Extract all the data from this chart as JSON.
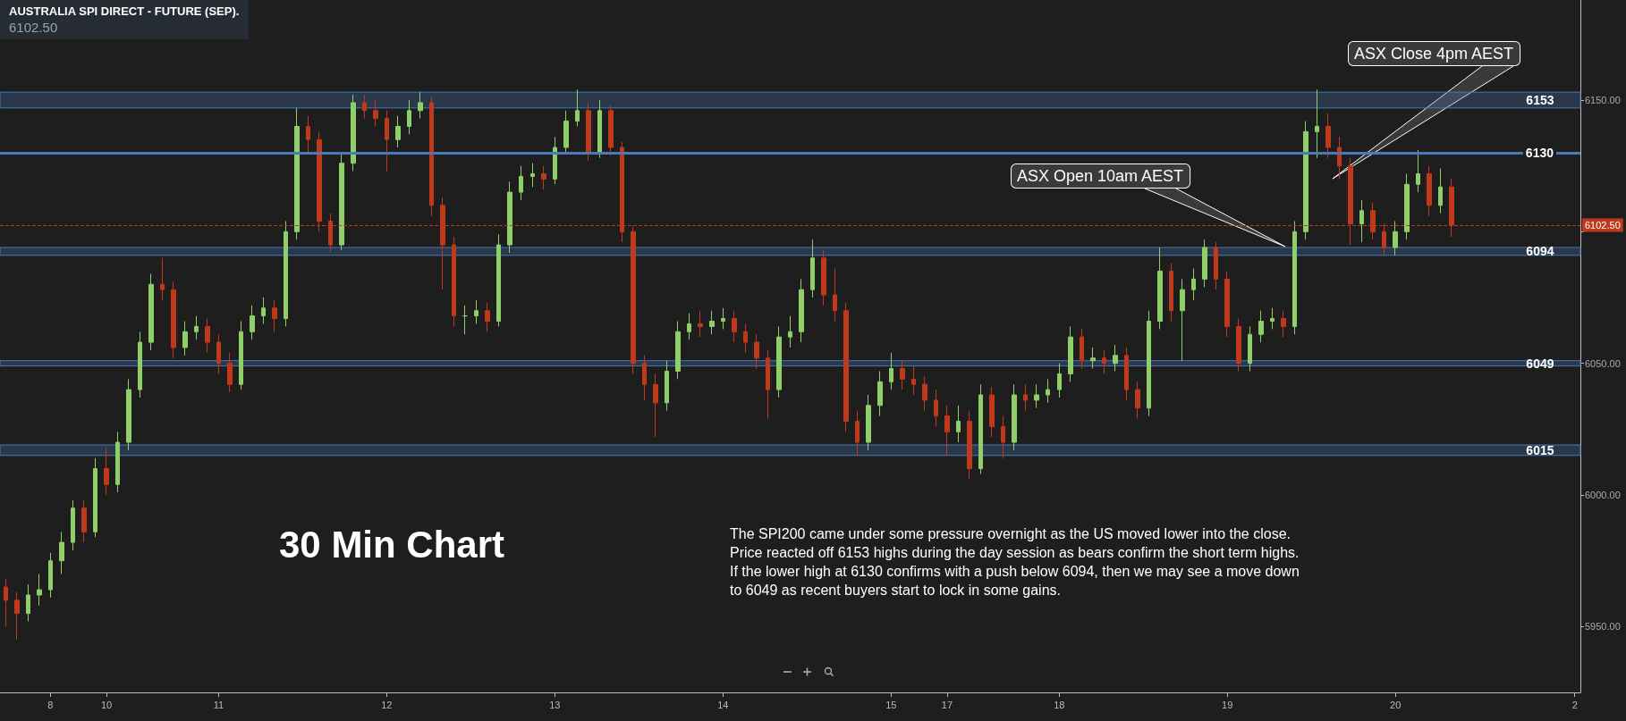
{
  "chart_data": {
    "type": "candlestick",
    "title": "AUSTRALIA SPI DIRECT - FUTURE (SEP).",
    "subtitle": "6102.50",
    "annotations": [
      "30 Min Chart",
      "The SPI200 came under some pressure overnight as the US moved lower into the close.\nPrice reacted off 6153 highs during the day session as bears confirm the short term highs.\nIf the lower high at 6130 confirms with a push below 6094, then we may see a move down\nto 6049 as recent buyers start to lock in some gains.",
      "ASX Open 10am AEST",
      "ASX Close 4pm AEST"
    ],
    "categories": [
      null,
      null,
      null,
      null,
      "8",
      null,
      null,
      null,
      null,
      "10",
      null,
      null,
      null,
      null,
      null,
      null,
      null,
      null,
      null,
      "11",
      null,
      null,
      null,
      null,
      null,
      null,
      null,
      null,
      null,
      null,
      null,
      null,
      null,
      null,
      "12",
      null,
      null,
      null,
      null,
      null,
      null,
      null,
      null,
      null,
      null,
      null,
      null,
      null,
      null,
      "13",
      null,
      null,
      null,
      null,
      null,
      null,
      null,
      null,
      null,
      null,
      null,
      null,
      null,
      null,
      "14",
      null,
      null,
      null,
      null,
      null,
      null,
      null,
      null,
      null,
      null,
      null,
      null,
      null,
      null,
      "15",
      null,
      null,
      null,
      null,
      "17",
      null,
      null,
      null,
      null,
      null,
      null,
      null,
      null,
      null,
      "18",
      null,
      null,
      null,
      null,
      null,
      null,
      null,
      null,
      null,
      null,
      null,
      null,
      null,
      null,
      "19",
      null,
      null,
      null,
      null,
      null,
      null,
      null,
      null,
      null,
      null,
      null,
      null,
      null,
      null,
      "20",
      null,
      null,
      null,
      null,
      null,
      null,
      null,
      null,
      null,
      null,
      null,
      null,
      null,
      null,
      null,
      "2"
    ],
    "ohlc": [
      [
        5965,
        5968,
        5950,
        5960
      ],
      [
        5960,
        5963,
        5945,
        5955
      ],
      [
        5955,
        5966,
        5952,
        5962
      ],
      [
        5962,
        5970,
        5958,
        5964
      ],
      [
        5964,
        5978,
        5961,
        5975
      ],
      [
        5975,
        5986,
        5970,
        5982
      ],
      [
        5982,
        5998,
        5979,
        5995
      ],
      [
        5995,
        5998,
        5982,
        5986
      ],
      [
        5986,
        6014,
        5984,
        6010
      ],
      [
        6010,
        6018,
        6000,
        6004
      ],
      [
        6004,
        6024,
        6001,
        6020
      ],
      [
        6020,
        6044,
        6017,
        6040
      ],
      [
        6040,
        6062,
        6037,
        6058
      ],
      [
        6058,
        6084,
        6055,
        6080
      ],
      [
        6080,
        6090,
        6074,
        6078
      ],
      [
        6078,
        6081,
        6052,
        6056
      ],
      [
        6056,
        6066,
        6053,
        6062
      ],
      [
        6062,
        6068,
        6059,
        6064
      ],
      [
        6064,
        6067,
        6054,
        6058
      ],
      [
        6058,
        6061,
        6046,
        6050
      ],
      [
        6050,
        6054,
        6039,
        6042
      ],
      [
        6042,
        6066,
        6040,
        6062
      ],
      [
        6062,
        6072,
        6059,
        6068
      ],
      [
        6068,
        6075,
        6065,
        6071
      ],
      [
        6071,
        6074,
        6062,
        6067
      ],
      [
        6067,
        6104,
        6064,
        6100
      ],
      [
        6100,
        6147,
        6097,
        6140
      ],
      [
        6140,
        6144,
        6130,
        6135
      ],
      [
        6135,
        6138,
        6100,
        6104
      ],
      [
        6104,
        6107,
        6092,
        6095
      ],
      [
        6095,
        6130,
        6093,
        6126
      ],
      [
        6126,
        6152,
        6123,
        6149
      ],
      [
        6149,
        6152,
        6143,
        6146
      ],
      [
        6146,
        6150,
        6140,
        6143
      ],
      [
        6143,
        6146,
        6123,
        6135
      ],
      [
        6135,
        6144,
        6132,
        6140
      ],
      [
        6140,
        6150,
        6137,
        6146
      ],
      [
        6146,
        6153,
        6143,
        6149
      ],
      [
        6149,
        6151,
        6106,
        6110
      ],
      [
        6110,
        6113,
        6078,
        6095
      ],
      [
        6095,
        6098,
        6064,
        6068
      ],
      [
        6068,
        6072,
        6061,
        6068
      ],
      [
        6068,
        6074,
        6065,
        6070
      ],
      [
        6070,
        6073,
        6062,
        6066
      ],
      [
        6066,
        6099,
        6064,
        6095
      ],
      [
        6095,
        6119,
        6092,
        6115
      ],
      [
        6115,
        6125,
        6112,
        6121
      ],
      [
        6121,
        6126,
        6117,
        6122
      ],
      [
        6122,
        6125,
        6116,
        6120
      ],
      [
        6120,
        6136,
        6118,
        6132
      ],
      [
        6132,
        6146,
        6130,
        6142
      ],
      [
        6142,
        6154,
        6140,
        6146
      ],
      [
        6146,
        6149,
        6127,
        6130
      ],
      [
        6130,
        6150,
        6128,
        6146
      ],
      [
        6146,
        6148,
        6129,
        6132
      ],
      [
        6132,
        6134,
        6096,
        6100
      ],
      [
        6100,
        6102,
        6046,
        6050
      ],
      [
        6050,
        6053,
        6036,
        6042
      ],
      [
        6042,
        6046,
        6022,
        6035
      ],
      [
        6035,
        6051,
        6032,
        6047
      ],
      [
        6047,
        6066,
        6044,
        6062
      ],
      [
        6062,
        6069,
        6059,
        6065
      ],
      [
        6065,
        6070,
        6060,
        6064
      ],
      [
        6064,
        6070,
        6061,
        6066
      ],
      [
        6066,
        6071,
        6063,
        6067
      ],
      [
        6067,
        6070,
        6058,
        6062
      ],
      [
        6062,
        6065,
        6054,
        6058
      ],
      [
        6058,
        6061,
        6048,
        6052
      ],
      [
        6052,
        6055,
        6029,
        6040
      ],
      [
        6040,
        6064,
        6037,
        6060
      ],
      [
        6060,
        6068,
        6056,
        6062
      ],
      [
        6062,
        6082,
        6058,
        6078
      ],
      [
        6078,
        6097,
        6075,
        6090
      ],
      [
        6090,
        6093,
        6072,
        6076
      ],
      [
        6076,
        6086,
        6066,
        6070
      ],
      [
        6070,
        6073,
        6024,
        6028
      ],
      [
        6028,
        6032,
        6015,
        6020
      ],
      [
        6020,
        6038,
        6017,
        6034
      ],
      [
        6034,
        6047,
        6030,
        6043
      ],
      [
        6043,
        6054,
        6040,
        6048
      ],
      [
        6048,
        6051,
        6040,
        6044
      ],
      [
        6044,
        6049,
        6038,
        6042
      ],
      [
        6042,
        6045,
        6032,
        6036
      ],
      [
        6036,
        6040,
        6026,
        6030
      ],
      [
        6030,
        6034,
        6015,
        6024
      ],
      [
        6024,
        6034,
        6020,
        6028
      ],
      [
        6028,
        6032,
        6006,
        6010
      ],
      [
        6010,
        6042,
        6008,
        6038
      ],
      [
        6038,
        6041,
        6022,
        6026
      ],
      [
        6026,
        6030,
        6014,
        6020
      ],
      [
        6020,
        6042,
        6017,
        6038
      ],
      [
        6038,
        6042,
        6032,
        6036
      ],
      [
        6036,
        6042,
        6033,
        6038
      ],
      [
        6038,
        6044,
        6035,
        6040
      ],
      [
        6040,
        6050,
        6037,
        6046
      ],
      [
        6046,
        6064,
        6043,
        6060
      ],
      [
        6060,
        6063,
        6048,
        6051
      ],
      [
        6051,
        6056,
        6048,
        6052
      ],
      [
        6052,
        6055,
        6046,
        6050
      ],
      [
        6050,
        6057,
        6047,
        6053
      ],
      [
        6053,
        6056,
        6036,
        6040
      ],
      [
        6040,
        6043,
        6029,
        6033
      ],
      [
        6033,
        6070,
        6030,
        6066
      ],
      [
        6066,
        6094,
        6063,
        6085
      ],
      [
        6085,
        6088,
        6066,
        6070
      ],
      [
        6070,
        6082,
        6051,
        6078
      ],
      [
        6078,
        6086,
        6074,
        6082
      ],
      [
        6082,
        6097,
        6079,
        6094
      ],
      [
        6094,
        6096,
        6078,
        6082
      ],
      [
        6082,
        6085,
        6060,
        6064
      ],
      [
        6064,
        6067,
        6047,
        6050
      ],
      [
        6050,
        6064,
        6047,
        6061
      ],
      [
        6061,
        6070,
        6058,
        6066
      ],
      [
        6066,
        6071,
        6063,
        6067
      ],
      [
        6067,
        6070,
        6060,
        6064
      ],
      [
        6064,
        6104,
        6061,
        6100
      ],
      [
        6100,
        6142,
        6097,
        6138
      ],
      [
        6138,
        6154,
        6128,
        6140
      ],
      [
        6140,
        6145,
        6128,
        6132
      ],
      [
        6132,
        6136,
        6120,
        6125
      ],
      [
        6125,
        6128,
        6095,
        6103
      ],
      [
        6103,
        6112,
        6096,
        6108
      ],
      [
        6108,
        6111,
        6097,
        6100
      ],
      [
        6100,
        6103,
        6091,
        6094
      ],
      [
        6094,
        6104,
        6091,
        6100
      ],
      [
        6100,
        6122,
        6097,
        6118
      ],
      [
        6118,
        6131,
        6115,
        6122
      ],
      [
        6122,
        6125,
        6106,
        6110
      ],
      [
        6110,
        6124,
        6107,
        6117
      ],
      [
        6117,
        6120,
        6098,
        6102.5
      ],
      null,
      null,
      null,
      null,
      null,
      null,
      null,
      null,
      null,
      null,
      null
    ],
    "ylim": [
      5925,
      6188
    ],
    "yticks": [
      {
        "value": 5950,
        "label": "5950.00"
      },
      {
        "value": 6000,
        "label": "6000.00"
      },
      {
        "value": 6050,
        "label": "6050.00"
      },
      {
        "value": 6100,
        "label": null
      },
      {
        "value": 6150,
        "label": "6150.00"
      }
    ],
    "bands": [
      {
        "axis": "y",
        "from": 6147,
        "to": 6153,
        "label": "6153",
        "color": "#4a78b8"
      },
      {
        "axis": "y",
        "from": 6091,
        "to": 6094,
        "label": "6094",
        "color": "#4a78b8"
      },
      {
        "axis": "y",
        "from": 6049,
        "to": 6051,
        "label": "6049",
        "color": "#4a78b8"
      },
      {
        "axis": "y",
        "from": 6015,
        "to": 6019,
        "label": "6015",
        "color": "#4a78b8"
      }
    ],
    "ref_lines": [
      {
        "axis": "y",
        "value": 6130,
        "label": "6130",
        "color": "#4a78b8",
        "line_style": "solid"
      },
      {
        "axis": "y",
        "value": 6102.5,
        "label": "6102.50",
        "color": "#c0391b",
        "line_style": "dashed"
      }
    ],
    "grid": false
  }
}
